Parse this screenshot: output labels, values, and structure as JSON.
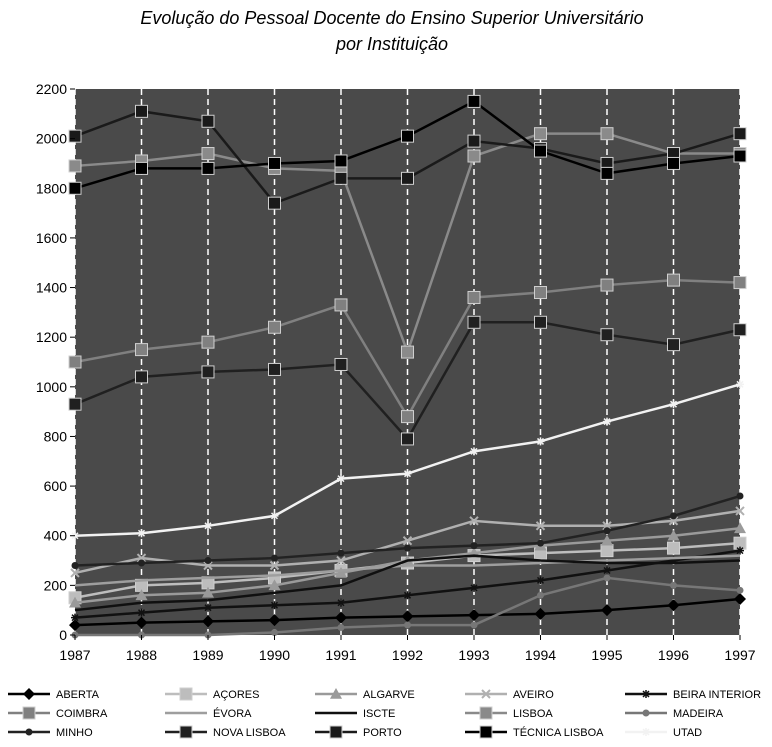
{
  "chart_data": {
    "type": "line",
    "title": [
      "Evolução do Pessoal Docente do Ensino Superior Universitário",
      "por Instituição"
    ],
    "xlabel": "",
    "ylabel": "",
    "x": [
      "1987",
      "1988",
      "1989",
      "1990",
      "1991",
      "1992",
      "1993",
      "1994",
      "1995",
      "1996",
      "1997"
    ],
    "ylim": [
      0,
      2200
    ],
    "yticks": [
      "0",
      "200",
      "400",
      "600",
      "800",
      "1000",
      "1200",
      "1400",
      "1600",
      "1800",
      "2000",
      "2200"
    ],
    "grid": "vertical dashed white lines",
    "legend_position": "bottom",
    "plot_background": "#4a4a4a",
    "series": [
      {
        "name": "ABERTA",
        "color": "#000000",
        "marker": "diamond",
        "values": [
          40,
          50,
          55,
          60,
          70,
          75,
          80,
          85,
          100,
          120,
          145
        ]
      },
      {
        "name": "AÇORES",
        "color": "#bdbdbd",
        "marker": "square",
        "values": [
          150,
          200,
          210,
          230,
          260,
          290,
          320,
          330,
          340,
          350,
          370
        ]
      },
      {
        "name": "ALGARVE",
        "color": "#9a9a9a",
        "marker": "triangle",
        "values": [
          130,
          160,
          170,
          200,
          250,
          300,
          330,
          360,
          380,
          400,
          430
        ]
      },
      {
        "name": "AVEIRO",
        "color": "#b0b0b0",
        "marker": "x",
        "values": [
          250,
          310,
          280,
          280,
          300,
          380,
          460,
          440,
          440,
          460,
          500
        ]
      },
      {
        "name": "BEIRA INTERIOR",
        "color": "#111111",
        "marker": "star",
        "values": [
          70,
          90,
          110,
          120,
          130,
          160,
          190,
          220,
          260,
          300,
          340
        ]
      },
      {
        "name": "COIMBRA",
        "color": "#808080",
        "marker": "square",
        "values": [
          1100,
          1150,
          1180,
          1240,
          1330,
          880,
          1360,
          1380,
          1410,
          1430,
          1420
        ]
      },
      {
        "name": "ÉVORA",
        "color": "#9e9e9e",
        "marker": "none",
        "values": [
          200,
          220,
          230,
          240,
          260,
          280,
          280,
          290,
          300,
          310,
          320
        ]
      },
      {
        "name": "ISCTE",
        "color": "#101010",
        "marker": "none",
        "values": [
          100,
          130,
          140,
          170,
          200,
          300,
          320,
          300,
          290,
          290,
          300
        ]
      },
      {
        "name": "LISBOA",
        "color": "#8a8a8a",
        "marker": "square",
        "values": [
          1890,
          1910,
          1940,
          1880,
          1870,
          1140,
          1930,
          2020,
          2020,
          1940,
          1940
        ]
      },
      {
        "name": "MADEIRA",
        "color": "#777777",
        "marker": "circle",
        "values": [
          0,
          0,
          0,
          10,
          30,
          40,
          40,
          160,
          230,
          200,
          180
        ]
      },
      {
        "name": "MINHO",
        "color": "#222222",
        "marker": "circle",
        "values": [
          280,
          290,
          300,
          310,
          330,
          350,
          360,
          370,
          420,
          480,
          560
        ]
      },
      {
        "name": "NOVA LISBOA",
        "color": "#202020",
        "marker": "square",
        "values": [
          930,
          1040,
          1060,
          1070,
          1090,
          790,
          1260,
          1260,
          1210,
          1170,
          1230
        ]
      },
      {
        "name": "PORTO",
        "color": "#1a1a1a",
        "marker": "square",
        "values": [
          2010,
          2110,
          2070,
          1740,
          1840,
          1840,
          1990,
          1960,
          1900,
          1940,
          2020
        ]
      },
      {
        "name": "TÉCNICA LISBOA",
        "color": "#000000",
        "marker": "square",
        "values": [
          1800,
          1880,
          1880,
          1900,
          1910,
          2010,
          2150,
          1950,
          1860,
          1900,
          1930
        ]
      },
      {
        "name": "UTAD",
        "color": "#f2f2f2",
        "marker": "star",
        "values": [
          400,
          410,
          440,
          480,
          630,
          650,
          740,
          780,
          860,
          930,
          1010
        ]
      }
    ]
  }
}
